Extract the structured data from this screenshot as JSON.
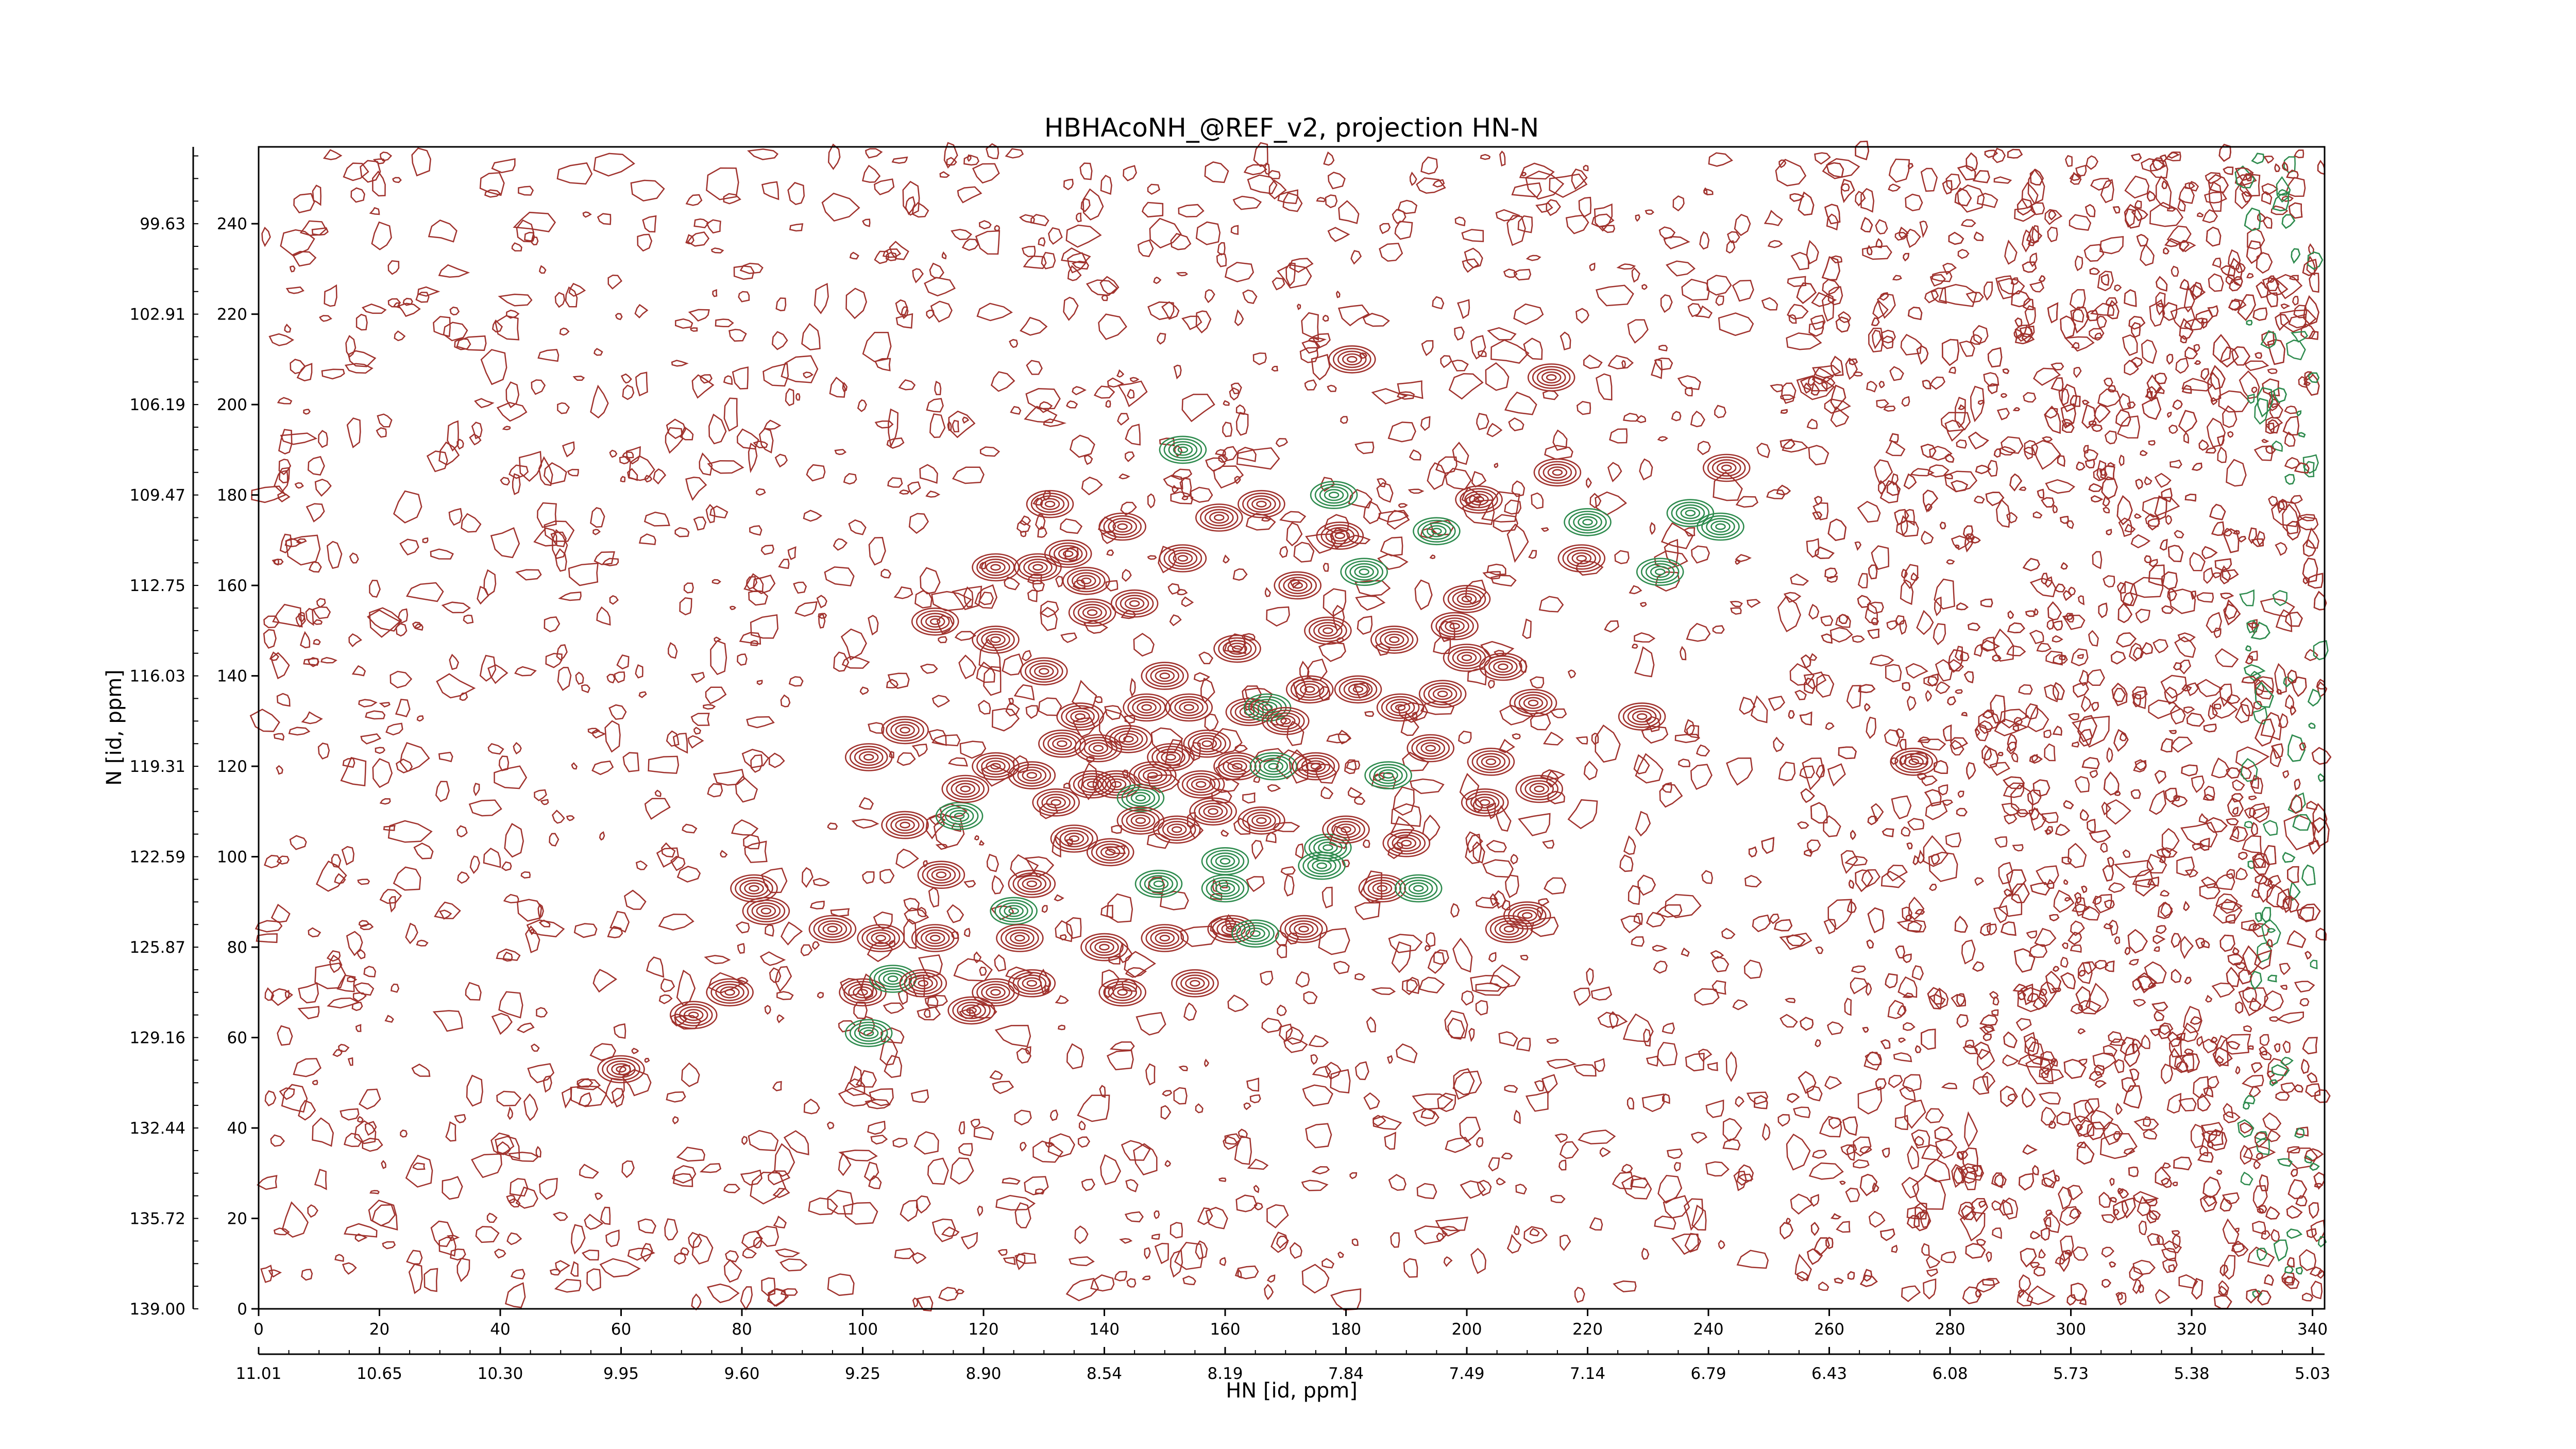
{
  "chart_data": {
    "type": "contour",
    "title": "HBHAcoNH_@REF_v2, projection HN-N",
    "xlabel": "HN [id, ppm]",
    "ylabel": "N [id, ppm]",
    "x_points_ticks": [
      "0",
      "20",
      "40",
      "60",
      "80",
      "100",
      "120",
      "140",
      "160",
      "180",
      "200",
      "220",
      "240",
      "260",
      "280",
      "300",
      "320",
      "340"
    ],
    "x_ppm_ticks": [
      "11.01",
      "10.65",
      "10.30",
      "9.95",
      "9.60",
      "9.25",
      "8.90",
      "8.54",
      "8.19",
      "7.84",
      "7.49",
      "7.14",
      "6.79",
      "6.43",
      "6.08",
      "5.73",
      "5.38",
      "5.03"
    ],
    "y_points_ticks": [
      "0",
      "20",
      "40",
      "60",
      "80",
      "100",
      "120",
      "140",
      "160",
      "180",
      "200",
      "220",
      "240"
    ],
    "y_ppm_ticks": [
      "139.00",
      "135.72",
      "132.44",
      "129.16",
      "125.87",
      "122.59",
      "119.31",
      "116.03",
      "112.75",
      "109.47",
      "106.19",
      "102.91",
      "99.63"
    ],
    "xlim": [
      0,
      342
    ],
    "ylim": [
      0,
      257
    ],
    "colors": {
      "positive": "#a0322d",
      "negative": "#2e8b4e"
    },
    "peaks": [
      {
        "x": 60,
        "y": 53,
        "sign": "pos"
      },
      {
        "x": 72,
        "y": 65,
        "sign": "pos"
      },
      {
        "x": 78,
        "y": 70,
        "sign": "pos"
      },
      {
        "x": 82,
        "y": 93,
        "sign": "pos"
      },
      {
        "x": 84,
        "y": 88,
        "sign": "pos"
      },
      {
        "x": 95,
        "y": 84,
        "sign": "pos"
      },
      {
        "x": 100,
        "y": 70,
        "sign": "pos"
      },
      {
        "x": 101,
        "y": 61,
        "sign": "neg"
      },
      {
        "x": 101,
        "y": 122,
        "sign": "pos"
      },
      {
        "x": 103,
        "y": 82,
        "sign": "pos"
      },
      {
        "x": 105,
        "y": 73,
        "sign": "neg"
      },
      {
        "x": 107,
        "y": 107,
        "sign": "pos"
      },
      {
        "x": 107,
        "y": 128,
        "sign": "pos"
      },
      {
        "x": 110,
        "y": 72,
        "sign": "pos"
      },
      {
        "x": 112,
        "y": 82,
        "sign": "pos"
      },
      {
        "x": 112,
        "y": 152,
        "sign": "pos"
      },
      {
        "x": 113,
        "y": 96,
        "sign": "pos"
      },
      {
        "x": 116,
        "y": 109,
        "sign": "neg"
      },
      {
        "x": 117,
        "y": 115,
        "sign": "pos"
      },
      {
        "x": 118,
        "y": 66,
        "sign": "pos"
      },
      {
        "x": 122,
        "y": 70,
        "sign": "pos"
      },
      {
        "x": 122,
        "y": 120,
        "sign": "pos"
      },
      {
        "x": 122,
        "y": 148,
        "sign": "pos"
      },
      {
        "x": 122,
        "y": 164,
        "sign": "pos"
      },
      {
        "x": 125,
        "y": 88,
        "sign": "neg"
      },
      {
        "x": 126,
        "y": 82,
        "sign": "pos"
      },
      {
        "x": 128,
        "y": 72,
        "sign": "pos"
      },
      {
        "x": 128,
        "y": 94,
        "sign": "pos"
      },
      {
        "x": 128,
        "y": 118,
        "sign": "pos"
      },
      {
        "x": 129,
        "y": 164,
        "sign": "pos"
      },
      {
        "x": 130,
        "y": 141,
        "sign": "pos"
      },
      {
        "x": 131,
        "y": 178,
        "sign": "pos"
      },
      {
        "x": 132,
        "y": 112,
        "sign": "pos"
      },
      {
        "x": 133,
        "y": 125,
        "sign": "pos"
      },
      {
        "x": 134,
        "y": 167,
        "sign": "pos"
      },
      {
        "x": 135,
        "y": 104,
        "sign": "pos"
      },
      {
        "x": 136,
        "y": 131,
        "sign": "pos"
      },
      {
        "x": 137,
        "y": 161,
        "sign": "pos"
      },
      {
        "x": 138,
        "y": 116,
        "sign": "pos"
      },
      {
        "x": 138,
        "y": 154,
        "sign": "pos"
      },
      {
        "x": 139,
        "y": 124,
        "sign": "pos"
      },
      {
        "x": 140,
        "y": 80,
        "sign": "pos"
      },
      {
        "x": 141,
        "y": 101,
        "sign": "pos"
      },
      {
        "x": 142,
        "y": 116,
        "sign": "pos"
      },
      {
        "x": 143,
        "y": 70,
        "sign": "pos"
      },
      {
        "x": 143,
        "y": 173,
        "sign": "pos"
      },
      {
        "x": 144,
        "y": 126,
        "sign": "pos"
      },
      {
        "x": 145,
        "y": 156,
        "sign": "pos"
      },
      {
        "x": 146,
        "y": 113,
        "sign": "neg"
      },
      {
        "x": 146,
        "y": 108,
        "sign": "pos"
      },
      {
        "x": 147,
        "y": 133,
        "sign": "pos"
      },
      {
        "x": 148,
        "y": 118,
        "sign": "pos"
      },
      {
        "x": 149,
        "y": 94,
        "sign": "neg"
      },
      {
        "x": 150,
        "y": 82,
        "sign": "pos"
      },
      {
        "x": 150,
        "y": 140,
        "sign": "pos"
      },
      {
        "x": 151,
        "y": 122,
        "sign": "pos"
      },
      {
        "x": 152,
        "y": 106,
        "sign": "pos"
      },
      {
        "x": 153,
        "y": 166,
        "sign": "pos"
      },
      {
        "x": 153,
        "y": 190,
        "sign": "neg"
      },
      {
        "x": 154,
        "y": 133,
        "sign": "pos"
      },
      {
        "x": 155,
        "y": 72,
        "sign": "pos"
      },
      {
        "x": 156,
        "y": 116,
        "sign": "pos"
      },
      {
        "x": 157,
        "y": 125,
        "sign": "pos"
      },
      {
        "x": 158,
        "y": 110,
        "sign": "pos"
      },
      {
        "x": 159,
        "y": 175,
        "sign": "pos"
      },
      {
        "x": 160,
        "y": 99,
        "sign": "neg"
      },
      {
        "x": 160,
        "y": 93,
        "sign": "neg"
      },
      {
        "x": 161,
        "y": 84,
        "sign": "pos"
      },
      {
        "x": 162,
        "y": 120,
        "sign": "pos"
      },
      {
        "x": 162,
        "y": 146,
        "sign": "pos"
      },
      {
        "x": 164,
        "y": 132,
        "sign": "pos"
      },
      {
        "x": 165,
        "y": 83,
        "sign": "neg"
      },
      {
        "x": 166,
        "y": 108,
        "sign": "pos"
      },
      {
        "x": 166,
        "y": 178,
        "sign": "pos"
      },
      {
        "x": 167,
        "y": 133,
        "sign": "neg"
      },
      {
        "x": 168,
        "y": 120,
        "sign": "neg"
      },
      {
        "x": 170,
        "y": 130,
        "sign": "pos"
      },
      {
        "x": 172,
        "y": 160,
        "sign": "pos"
      },
      {
        "x": 173,
        "y": 84,
        "sign": "pos"
      },
      {
        "x": 174,
        "y": 137,
        "sign": "pos"
      },
      {
        "x": 175,
        "y": 120,
        "sign": "pos"
      },
      {
        "x": 176,
        "y": 98,
        "sign": "neg"
      },
      {
        "x": 177,
        "y": 150,
        "sign": "pos"
      },
      {
        "x": 177,
        "y": 102,
        "sign": "neg"
      },
      {
        "x": 178,
        "y": 180,
        "sign": "neg"
      },
      {
        "x": 179,
        "y": 171,
        "sign": "pos"
      },
      {
        "x": 180,
        "y": 106,
        "sign": "pos"
      },
      {
        "x": 181,
        "y": 210,
        "sign": "pos"
      },
      {
        "x": 182,
        "y": 137,
        "sign": "pos"
      },
      {
        "x": 183,
        "y": 163,
        "sign": "neg"
      },
      {
        "x": 186,
        "y": 93,
        "sign": "pos"
      },
      {
        "x": 187,
        "y": 118,
        "sign": "neg"
      },
      {
        "x": 188,
        "y": 148,
        "sign": "pos"
      },
      {
        "x": 189,
        "y": 133,
        "sign": "pos"
      },
      {
        "x": 190,
        "y": 103,
        "sign": "pos"
      },
      {
        "x": 192,
        "y": 93,
        "sign": "neg"
      },
      {
        "x": 194,
        "y": 124,
        "sign": "pos"
      },
      {
        "x": 195,
        "y": 172,
        "sign": "neg"
      },
      {
        "x": 196,
        "y": 136,
        "sign": "pos"
      },
      {
        "x": 198,
        "y": 151,
        "sign": "pos"
      },
      {
        "x": 200,
        "y": 144,
        "sign": "pos"
      },
      {
        "x": 200,
        "y": 157,
        "sign": "pos"
      },
      {
        "x": 202,
        "y": 179,
        "sign": "pos"
      },
      {
        "x": 203,
        "y": 112,
        "sign": "pos"
      },
      {
        "x": 204,
        "y": 121,
        "sign": "pos"
      },
      {
        "x": 206,
        "y": 142,
        "sign": "pos"
      },
      {
        "x": 207,
        "y": 84,
        "sign": "pos"
      },
      {
        "x": 210,
        "y": 87,
        "sign": "pos"
      },
      {
        "x": 211,
        "y": 134,
        "sign": "pos"
      },
      {
        "x": 212,
        "y": 115,
        "sign": "pos"
      },
      {
        "x": 214,
        "y": 206,
        "sign": "pos"
      },
      {
        "x": 215,
        "y": 185,
        "sign": "pos"
      },
      {
        "x": 219,
        "y": 166,
        "sign": "pos"
      },
      {
        "x": 220,
        "y": 174,
        "sign": "neg"
      },
      {
        "x": 229,
        "y": 131,
        "sign": "pos"
      },
      {
        "x": 232,
        "y": 163,
        "sign": "neg"
      },
      {
        "x": 237,
        "y": 176,
        "sign": "neg"
      },
      {
        "x": 242,
        "y": 173,
        "sign": "neg"
      },
      {
        "x": 243,
        "y": 186,
        "sign": "pos"
      },
      {
        "x": 274,
        "y": 121,
        "sign": "pos"
      }
    ]
  }
}
